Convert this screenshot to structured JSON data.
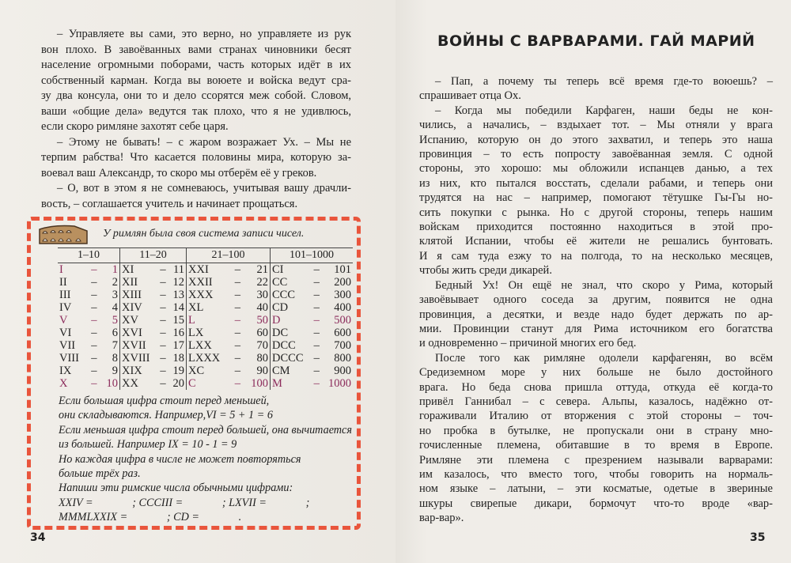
{
  "left": {
    "paragraphs": [
      [
        "– Управляете вы сами, это верно, но управляете из рук",
        "вон плохо. В завоёванных вами странах чиновники бесят",
        "население огромными поборами, часть которых идёт в их",
        "собственный карман. Когда вы воюете и войска ведут сра-",
        "зу два консула, они то и дело ссорятся меж собой. Словом,",
        "ваши «общие дела» ведутся так плохо, что я не удивлюсь,",
        "если скоро римляне захотят себе царя."
      ],
      [
        "– Этому не бывать! – с жаром возражает Ух. – Мы не",
        "терпим рабства! Что касается половины мира, которую за-",
        "воевал ваш Александр, то скоро мы отберём её у греков."
      ],
      [
        "– О, вот в этом я не сомневаюсь, учитывая вашу драчли-",
        "вость, – соглашается учитель и начинает прощаться."
      ]
    ],
    "box": {
      "caption": "У римлян была своя система записи чисел.",
      "headers": [
        "1–10",
        "11–20",
        "21–100",
        "101–1000"
      ],
      "rows": [
        [
          [
            "I",
            "1",
            1
          ],
          [
            "XI",
            "11",
            0
          ],
          [
            "XXI",
            "21",
            0
          ],
          [
            "CI",
            "101",
            0
          ]
        ],
        [
          [
            "II",
            "2",
            0
          ],
          [
            "XII",
            "12",
            0
          ],
          [
            "XXII",
            "22",
            0
          ],
          [
            "CC",
            "200",
            0
          ]
        ],
        [
          [
            "III",
            "3",
            0
          ],
          [
            "XIII",
            "13",
            0
          ],
          [
            "XXX",
            "30",
            0
          ],
          [
            "CCC",
            "300",
            0
          ]
        ],
        [
          [
            "IV",
            "4",
            0
          ],
          [
            "XIV",
            "14",
            0
          ],
          [
            "XL",
            "40",
            0
          ],
          [
            "CD",
            "400",
            0
          ]
        ],
        [
          [
            "V",
            "5",
            1
          ],
          [
            "XV",
            "15",
            0
          ],
          [
            "L",
            "50",
            1
          ],
          [
            "D",
            "500",
            1
          ]
        ],
        [
          [
            "VI",
            "6",
            0
          ],
          [
            "XVI",
            "16",
            0
          ],
          [
            "LX",
            "60",
            0
          ],
          [
            "DC",
            "600",
            0
          ]
        ],
        [
          [
            "VII",
            "7",
            0
          ],
          [
            "XVII",
            "17",
            0
          ],
          [
            "LXX",
            "70",
            0
          ],
          [
            "DCC",
            "700",
            0
          ]
        ],
        [
          [
            "VIII",
            "8",
            0
          ],
          [
            "XVIII",
            "18",
            0
          ],
          [
            "LXXX",
            "80",
            0
          ],
          [
            "DCCC",
            "800",
            0
          ]
        ],
        [
          [
            "IX",
            "9",
            0
          ],
          [
            "XIX",
            "19",
            0
          ],
          [
            "XC",
            "90",
            0
          ],
          [
            "CM",
            "900",
            0
          ]
        ],
        [
          [
            "X",
            "10",
            1
          ],
          [
            "XX",
            "20",
            0
          ],
          [
            "C",
            "100",
            1
          ],
          [
            "M",
            "1000",
            1
          ]
        ]
      ],
      "rules": [
        "Если большая цифра стоит перед меньшей,",
        "они складываются. Например,VI = 5 + 1 = 6",
        "Если меньшая цифра стоит перед большей, она вычитается",
        "из большей. Например IX = 10 - 1 = 9",
        "Но каждая цифра в числе не может повторяться",
        "больше трёх раз.",
        "Напиши эти римские числа обычными цифрами:",
        "XXIV =              ; CCCIII =              ; LXVII =              ;",
        "MMMLXXIX =              ; CD =              ."
      ]
    },
    "page_number": "34"
  },
  "right": {
    "title": "ВОЙНЫ С ВАРВАРАМИ. ГАЙ МАРИЙ",
    "paragraphs": [
      [
        "– Пап, а почему ты теперь всё время где-то воюешь? –",
        "спрашивает отца Ох."
      ],
      [
        "– Когда мы победили Карфаген, наши беды не кон-",
        "чились, а начались, – вздыхает тот. – Мы отняли у врага",
        "Испанию, которую он до этого захватил, и теперь это наша",
        "провинция – то есть попросту завоёванная земля. С одной",
        "стороны, это хорошо: мы обложили испанцев данью, а тех",
        "из них, кто пытался восстать, сделали рабами, и теперь они",
        "трудятся на нас – например, помогают тётушке Гы-Гы но-",
        "сить покупки с рынка. Но с другой стороны, теперь нашим",
        "войскам приходится постоянно находиться в этой про-",
        "клятой Испании, чтобы её жители не решались бунтовать.",
        "И я сам туда езжу то на полгода, то на несколько месяцев,",
        "чтобы жить среди дикарей."
      ],
      [
        "Бедный Ух! Он ещё не знал, что скоро у Рима, который",
        "завоёвывает одного соседа за другим, появится не одна",
        "провинция, а десятки, и везде надо будет держать по ар-",
        "мии. Провинции станут для Рима источником его богатства",
        "и одновременно – причиной многих его бед."
      ],
      [
        "После того как римляне одолели карфагенян, во всём",
        "Средиземном море у них больше не было достойного",
        "врага. Но беда снова пришла оттуда, откуда её когда-то",
        "привёл Ганнибал – с севера. Альпы, казалось, надёжно от-",
        "гораживали Италию от вторжения с этой стороны – точ-",
        "но пробка в бутылке, не пропускали они в страну мно-",
        "гочисленные племена, обитавшие в то время в Европе.",
        "Римляне эти племена с презрением называли варварами:",
        "им казалось, что вместо того, чтобы говорить на нормаль-",
        "ном языке – латыни, – эти косматые, одетые в звериные",
        "шкуры свирепые дикари, бормочут что-то вроде «вар-",
        "вар-вар»."
      ]
    ],
    "page_number": "35"
  },
  "colors": {
    "dashed_border": "#e9553c",
    "highlight": "#8b2a5a"
  },
  "icons": {
    "box": "colosseum-icon"
  }
}
